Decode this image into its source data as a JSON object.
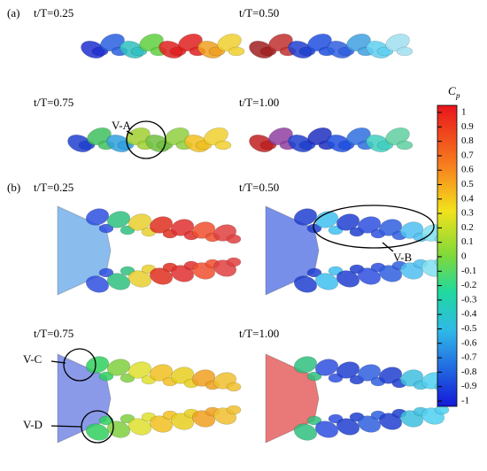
{
  "panels": [
    {
      "label": "(a)",
      "times": [
        "t/T=0.25",
        "t/T=0.50",
        "t/T=0.75",
        "t/T=1.00"
      ]
    },
    {
      "label": "(b)",
      "times": [
        "t/T=0.25",
        "t/T=0.50",
        "t/T=0.75",
        "t/T=1.00"
      ]
    }
  ],
  "annotations": [
    "V-A",
    "V-B",
    "V-C",
    "V-D"
  ],
  "colorbar": {
    "title": "C",
    "title_sub": "p",
    "ticks": [
      1,
      0.9,
      0.8,
      0.7,
      0.6,
      0.5,
      0.4,
      0.3,
      0.2,
      0.1,
      0,
      -0.1,
      -0.2,
      -0.3,
      -0.4,
      -0.5,
      -0.6,
      -0.7,
      -0.8,
      -0.9,
      -1
    ]
  }
}
